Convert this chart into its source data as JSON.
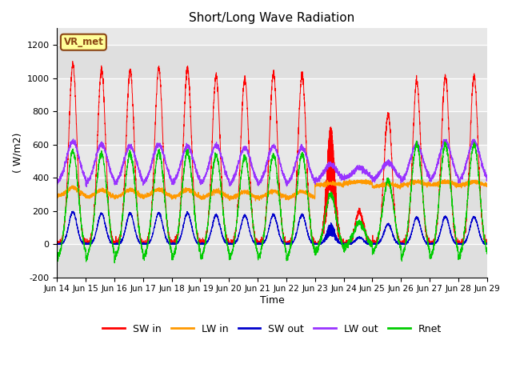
{
  "title": "Short/Long Wave Radiation",
  "xlabel": "Time",
  "ylabel": "( W/m2)",
  "ylim": [
    -200,
    1300
  ],
  "yticks": [
    -200,
    0,
    200,
    400,
    600,
    800,
    1000,
    1200
  ],
  "xlim_start": 0,
  "xlim_end": 15,
  "xtick_labels": [
    "Jun 14",
    "Jun 15",
    "Jun 16",
    "Jun 17",
    "Jun 18",
    "Jun 19",
    "Jun 20",
    "Jun 21",
    "Jun 22",
    "Jun 23",
    "Jun 24",
    "Jun 25",
    "Jun 26",
    "Jun 27",
    "Jun 28",
    "Jun 29"
  ],
  "station_label": "VR_met",
  "legend_entries": [
    "SW in",
    "LW in",
    "SW out",
    "LW out",
    "Rnet"
  ],
  "legend_colors": [
    "#ff0000",
    "#ff9900",
    "#0000cc",
    "#9933ff",
    "#00cc00"
  ],
  "sw_in_peaks": [
    1080,
    1050,
    1050,
    1060,
    1060,
    1010,
    1000,
    1030,
    1020,
    700,
    200,
    780,
    980,
    1010,
    1010
  ],
  "sw_out_peaks": [
    195,
    185,
    185,
    188,
    188,
    175,
    172,
    178,
    178,
    120,
    40,
    120,
    160,
    165,
    165
  ],
  "lw_out_peaks": [
    620,
    600,
    590,
    600,
    590,
    595,
    580,
    590,
    580,
    480,
    460,
    490,
    600,
    620,
    620
  ],
  "lw_out_night": [
    360,
    355,
    355,
    358,
    355,
    356,
    350,
    352,
    350,
    380,
    395,
    385,
    375,
    370,
    368
  ],
  "lw_in_day": [
    340,
    325,
    328,
    330,
    328,
    320,
    315,
    320,
    318,
    365,
    375,
    360,
    375,
    375,
    375
  ],
  "lw_in_night": [
    285,
    280,
    282,
    283,
    280,
    278,
    275,
    278,
    276,
    355,
    370,
    345,
    355,
    355,
    352
  ],
  "rnet_peaks": [
    560,
    545,
    545,
    555,
    555,
    535,
    525,
    540,
    540,
    300,
    130,
    380,
    600,
    600,
    600
  ],
  "rnet_night": [
    -100,
    -100,
    -100,
    -100,
    -100,
    -100,
    -100,
    -100,
    -100,
    -50,
    -20,
    -60,
    -100,
    -100,
    -100
  ],
  "background_color": "#ffffff",
  "plot_bg_color": "#e8e8e8",
  "grid_color": "#ffffff",
  "n_days": 15,
  "pts_per_day": 288
}
